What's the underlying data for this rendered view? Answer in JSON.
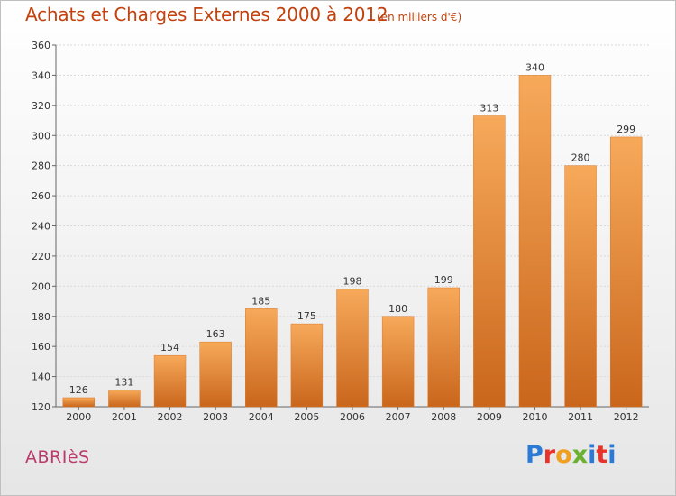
{
  "title": "Achats et Charges Externes 2000 à 2012",
  "subtitle": "(en milliers d'€)",
  "place": "ABRIèS",
  "logo": {
    "text": "Proxiti",
    "colors": [
      "#2b7bd6",
      "#e8332a",
      "#f0a020",
      "#6ab22e",
      "#2b7bd6",
      "#e8332a",
      "#2b7bd6"
    ]
  },
  "colors": {
    "bar_top": "#f7a95a",
    "bar_bottom": "#c9661c",
    "title": "#c2410c",
    "place": "#b93a6b"
  },
  "chart_data": {
    "type": "bar",
    "categories": [
      "2000",
      "2001",
      "2002",
      "2003",
      "2004",
      "2005",
      "2006",
      "2007",
      "2008",
      "2009",
      "2010",
      "2011",
      "2012"
    ],
    "values": [
      126,
      131,
      154,
      163,
      185,
      175,
      198,
      180,
      199,
      313,
      340,
      280,
      299
    ],
    "ylim": [
      120,
      360
    ],
    "yticks": [
      120,
      140,
      160,
      180,
      200,
      220,
      240,
      260,
      280,
      300,
      320,
      340,
      360
    ],
    "grid": true
  }
}
